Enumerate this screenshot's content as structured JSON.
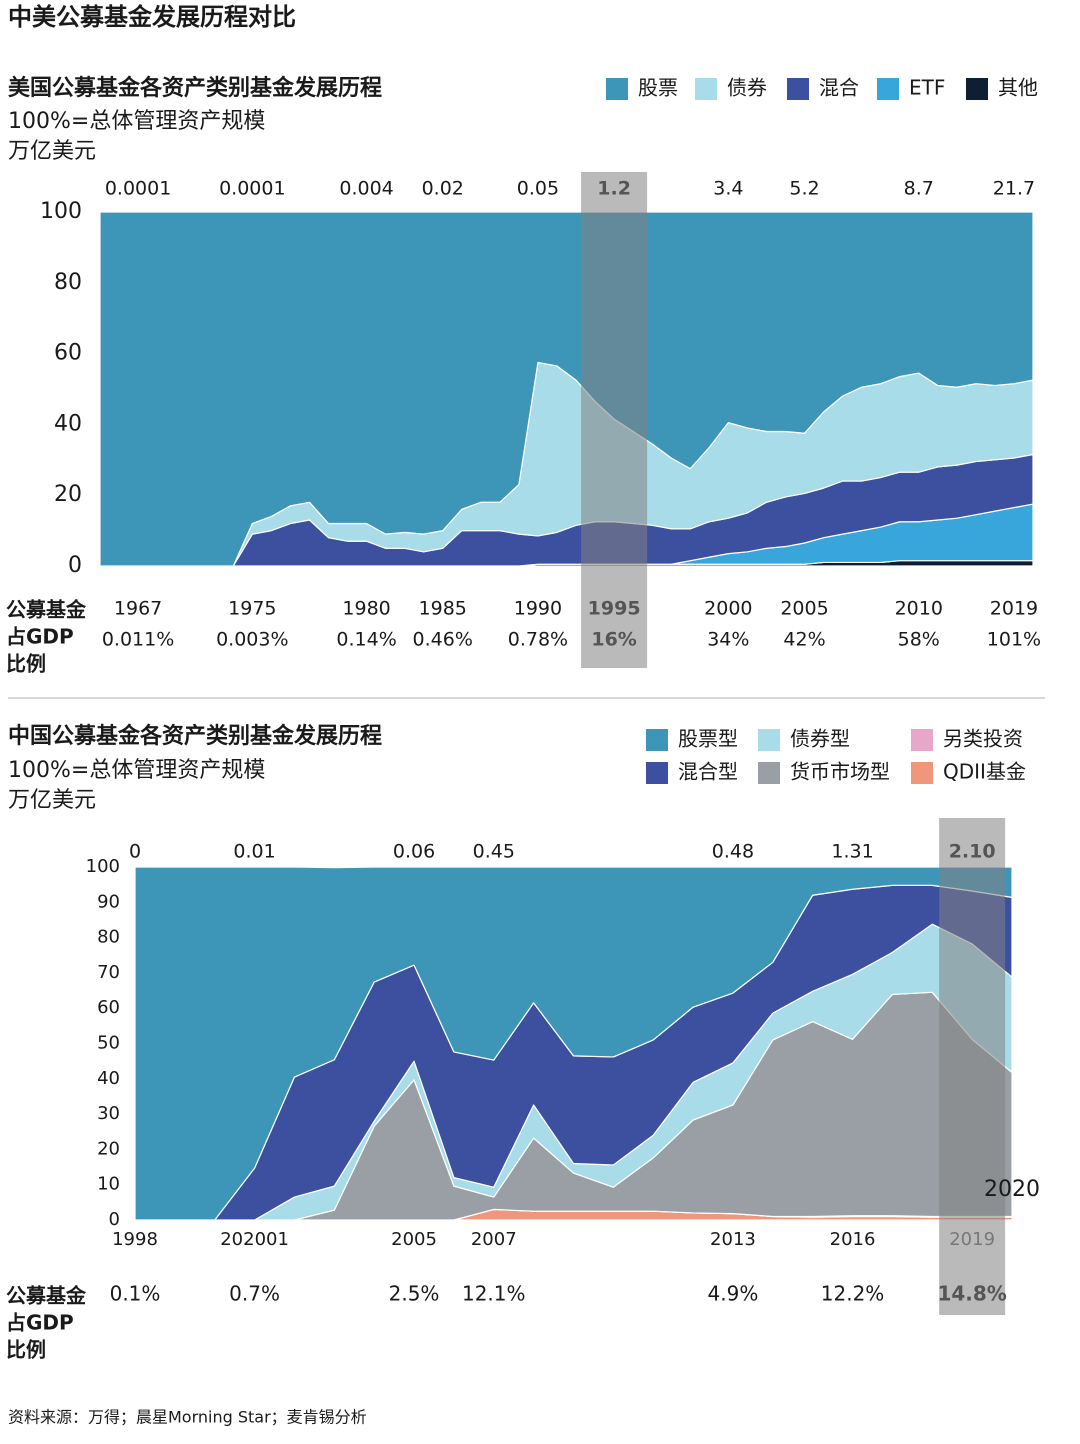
{
  "title": "中美公募基金发展历程对比",
  "source": "资料来源：万得；晨星Morning Star；麦肯锡分析",
  "chart_data": [
    {
      "type": "area",
      "stacked": true,
      "title": "美国公募基金各资产类别基金发展历程",
      "subtitle": "100%=总体管理资产规模",
      "unit": "万亿美元",
      "row_label": [
        "公募基金",
        "占GDP",
        "比例"
      ],
      "highlight": "1995",
      "legend": "top-right",
      "ylim": [
        0,
        100
      ],
      "yticks": [
        0,
        20,
        40,
        60,
        80,
        100
      ],
      "categories": [
        null,
        null,
        "1967",
        null,
        null,
        null,
        null,
        null,
        "1975",
        null,
        null,
        null,
        null,
        null,
        "1980",
        null,
        null,
        null,
        "1985",
        null,
        null,
        null,
        null,
        "1990",
        null,
        null,
        null,
        "1995",
        null,
        null,
        null,
        null,
        null,
        "2000",
        null,
        null,
        null,
        "2005",
        null,
        null,
        null,
        null,
        null,
        "2010",
        null,
        null,
        null,
        null,
        "2019",
        null
      ],
      "aum_labels": [
        null,
        null,
        "0.0001",
        null,
        null,
        null,
        null,
        null,
        "0.0001",
        null,
        null,
        null,
        null,
        null,
        "0.004",
        null,
        null,
        null,
        "0.02",
        null,
        null,
        null,
        null,
        "0.05",
        null,
        null,
        null,
        "1.2",
        null,
        null,
        null,
        null,
        null,
        "3.4",
        null,
        null,
        null,
        "5.2",
        null,
        null,
        null,
        null,
        null,
        "8.7",
        null,
        null,
        null,
        null,
        "21.7",
        null
      ],
      "gdp_labels": [
        null,
        null,
        "0.011%",
        null,
        null,
        null,
        null,
        null,
        "0.003%",
        null,
        null,
        null,
        null,
        null,
        "0.14%",
        null,
        null,
        null,
        "0.46%",
        null,
        null,
        null,
        null,
        "0.78%",
        null,
        null,
        null,
        "16%",
        null,
        null,
        null,
        null,
        null,
        "34%",
        null,
        null,
        null,
        "42%",
        null,
        null,
        null,
        null,
        null,
        "58%",
        null,
        null,
        null,
        null,
        "101%",
        null
      ],
      "series": [
        {
          "name": "股票",
          "color": "#3d96b8",
          "values": [
            100,
            100,
            100,
            100,
            100,
            100,
            100,
            100,
            88,
            86,
            83,
            82,
            88,
            88,
            88,
            91,
            90.5,
            91,
            90,
            84,
            82,
            82,
            77,
            42.5,
            43.5,
            47.5,
            53.5,
            58.5,
            62,
            65.5,
            69.5,
            72.5,
            66.5,
            59.5,
            61,
            62,
            62,
            62.5,
            56.5,
            52,
            49.5,
            48.5,
            46.5,
            45.5,
            49,
            49.5,
            48.5,
            49,
            48.5,
            47.5
          ]
        },
        {
          "name": "债券",
          "color": "#a8dce8",
          "values": [
            0,
            0,
            0,
            0,
            0,
            0,
            0,
            0,
            3,
            4,
            5,
            5,
            4,
            5,
            5,
            4,
            4.5,
            5,
            5,
            6,
            8,
            8,
            14,
            49,
            47,
            41,
            34,
            29,
            26,
            23,
            20,
            17,
            21,
            27,
            24,
            20,
            18.5,
            17,
            21.5,
            24,
            26.5,
            26.5,
            27,
            28,
            23,
            22,
            22,
            21,
            21,
            21
          ]
        },
        {
          "name": "混合",
          "color": "#3d4f9f",
          "values": [
            0,
            0,
            0,
            0,
            0,
            0,
            0,
            0,
            9,
            10,
            12,
            13,
            8,
            7,
            7,
            5,
            5,
            4,
            5,
            10,
            10,
            10,
            9,
            8,
            9,
            11,
            12,
            12,
            11.5,
            11,
            10,
            9,
            10,
            10,
            11,
            13,
            14,
            14,
            14,
            15,
            14,
            14,
            14,
            14,
            15,
            15,
            15,
            14.5,
            14,
            14
          ]
        },
        {
          "name": "ETF",
          "color": "#38a6da",
          "values": [
            0,
            0,
            0,
            0,
            0,
            0,
            0,
            0,
            0,
            0,
            0,
            0,
            0,
            0,
            0,
            0,
            0,
            0,
            0,
            0,
            0,
            0,
            0,
            0,
            0,
            0,
            0,
            0,
            0,
            0,
            0,
            1,
            2,
            3,
            3.5,
            4.5,
            5,
            6,
            7,
            8,
            9,
            10,
            11,
            11,
            11.5,
            12,
            13,
            14,
            15,
            16
          ]
        },
        {
          "name": "其他",
          "color": "#0e1f33",
          "values": [
            0,
            0,
            0,
            0,
            0,
            0,
            0,
            0,
            0,
            0,
            0,
            0,
            0,
            0,
            0,
            0,
            0,
            0,
            0,
            0,
            0,
            0,
            0,
            0.5,
            0.5,
            0.5,
            0.5,
            0.5,
            0.5,
            0.5,
            0.5,
            0.5,
            0.5,
            0.5,
            0.5,
            0.5,
            0.5,
            0.5,
            1,
            1,
            1,
            1,
            1.5,
            1.5,
            1.5,
            1.5,
            1.5,
            1.5,
            1.5,
            1.5
          ]
        }
      ]
    },
    {
      "type": "area",
      "stacked": true,
      "title": "中国公募基金各资产类别基金发展历程",
      "subtitle": "100%=总体管理资产规模",
      "unit": "万亿美元",
      "row_label": [
        "公募基金",
        "占GDP",
        "比例"
      ],
      "highlight": "2019",
      "legend": "top-right",
      "ylim": [
        0,
        100
      ],
      "yticks": [
        0,
        10,
        20,
        30,
        40,
        50,
        60,
        70,
        80,
        90,
        100
      ],
      "categories": [
        "1998",
        null,
        null,
        "202001",
        null,
        null,
        null,
        "2005",
        null,
        "2007",
        null,
        null,
        null,
        null,
        null,
        "2013",
        null,
        null,
        "2016",
        null,
        null,
        "2019",
        "2020"
      ],
      "aum_labels": [
        "0",
        null,
        null,
        "0.01",
        null,
        null,
        null,
        "0.06",
        null,
        "0.45",
        null,
        null,
        null,
        null,
        null,
        "0.48",
        null,
        null,
        "1.31",
        null,
        null,
        "2.10",
        null
      ],
      "gdp_labels": [
        "0.1%",
        null,
        null,
        "0.7%",
        null,
        null,
        null,
        "2.5%",
        null,
        "12.1%",
        null,
        null,
        null,
        null,
        null,
        "4.9%",
        null,
        null,
        "12.2%",
        null,
        null,
        "14.8%",
        null
      ],
      "series": [
        {
          "name": "股票型",
          "color": "#3d96b8",
          "values": [
            100,
            100,
            100,
            85.3,
            59.5,
            54.4,
            32.6,
            27.8,
            52.4,
            54.7,
            38.5,
            53.5,
            53.8,
            49,
            39.7,
            35.7,
            27,
            8,
            6.3,
            5.2,
            5.2,
            6.8,
            8.6
          ]
        },
        {
          "name": "混合型",
          "color": "#3d4f9f",
          "values": [
            0,
            0,
            0,
            14.7,
            34,
            35.8,
            39.4,
            27.2,
            35.6,
            36,
            28.9,
            30.5,
            30.6,
            27,
            21.3,
            19.8,
            14.4,
            27.2,
            24.1,
            19,
            11,
            15,
            22.6
          ]
        },
        {
          "name": "债券型",
          "color": "#a8dce8",
          "values": [
            0,
            0,
            0,
            0,
            6.5,
            6.8,
            1.4,
            5.3,
            2.4,
            2.8,
            9.4,
            2.7,
            6.3,
            6.4,
            10.7,
            11.9,
            7.6,
            8.6,
            18.4,
            11.9,
            19.3,
            27,
            27
          ]
        },
        {
          "name": "货币市场型",
          "color": "#9a9fa6",
          "values": [
            0,
            0,
            0,
            0,
            0,
            2.8,
            26.6,
            39.7,
            9.6,
            3.5,
            20.7,
            10.8,
            6.8,
            15.1,
            26.3,
            30.8,
            50,
            55.2,
            50,
            62.7,
            63.5,
            50.2,
            40.8
          ]
        },
        {
          "name": "另类投资",
          "color": "#e8a7c9",
          "values": [
            0,
            0,
            0,
            0,
            0,
            0,
            0,
            0,
            0,
            0,
            0,
            0,
            0,
            0,
            0,
            0,
            0,
            0.2,
            0.2,
            0.2,
            0.2,
            0.2,
            0.2
          ]
        },
        {
          "name": "QDII基金",
          "color": "#f0977b",
          "values": [
            0,
            0,
            0,
            0,
            0,
            0,
            0,
            0,
            0,
            3,
            2.5,
            2.5,
            2.5,
            2.5,
            2,
            1.8,
            1,
            0.8,
            1,
            1,
            0.8,
            0.8,
            0.8
          ]
        }
      ]
    }
  ]
}
